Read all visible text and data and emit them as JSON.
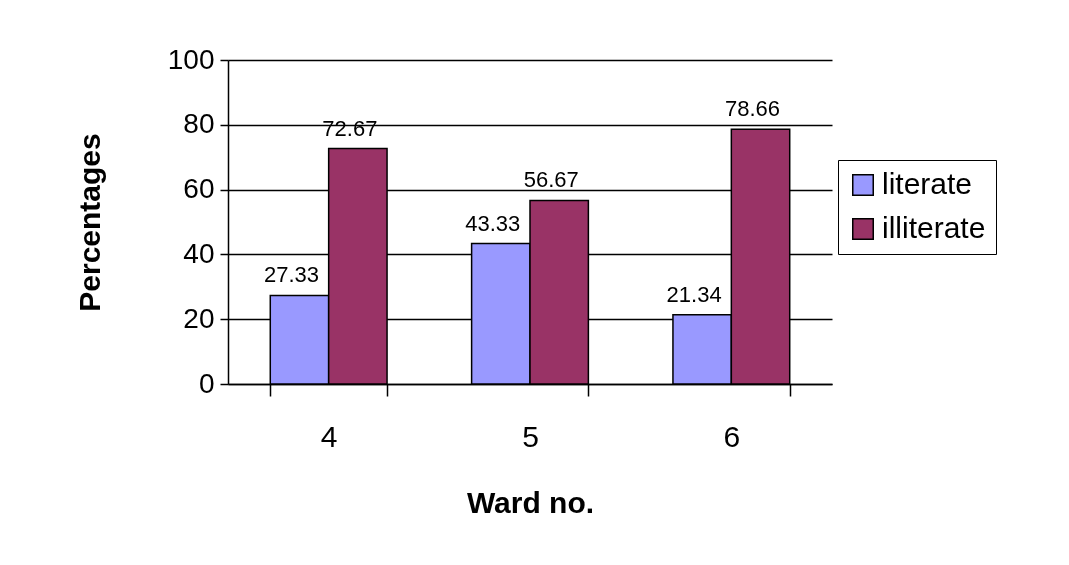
{
  "chart_data": {
    "type": "bar",
    "categories": [
      "4",
      "5",
      "6"
    ],
    "xlabel": "Ward no.",
    "ylabel": "Percentages",
    "series": [
      {
        "name": "literate",
        "color": "#9999ff",
        "values": [
          27.33,
          43.33,
          21.34
        ]
      },
      {
        "name": "illiterate",
        "color": "#993366",
        "values": [
          72.67,
          56.67,
          78.66
        ]
      }
    ],
    "ylim": [
      0,
      100
    ],
    "yticks": [
      0,
      20,
      40,
      60,
      80,
      100
    ],
    "grid": "y",
    "legend": "right",
    "data_labels": true
  }
}
